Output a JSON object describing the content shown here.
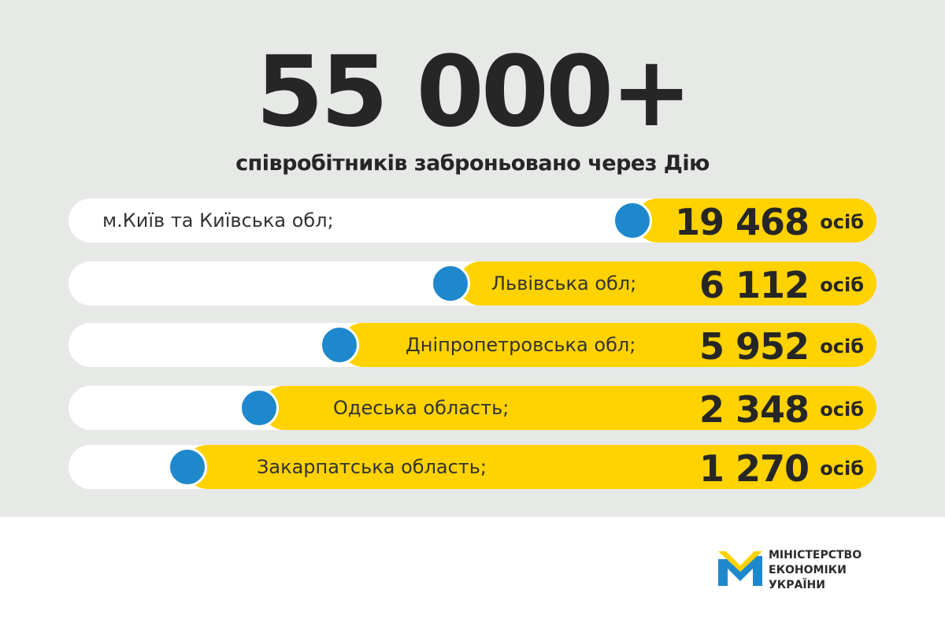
{
  "colors": {
    "background": "#e6e9e6",
    "bar_fill": "#ffd200",
    "bar_track": "#ffffff",
    "marker": "#1e88cc",
    "text": "#262626"
  },
  "header": {
    "total": "55 000+",
    "subtitle": "співробітників заброньовано через Дію"
  },
  "chart_data": {
    "type": "bar",
    "orientation": "horizontal",
    "categories": [
      "м.Київ та Київська обл;",
      "Львівська обл;",
      "Дніпропетровська обл;",
      "Одеська область;",
      "Закарпатська область;"
    ],
    "values": [
      19468,
      6112,
      5952,
      2348,
      1270
    ],
    "value_labels": [
      "19 468",
      "6 112",
      "5 952",
      "2 348",
      "1 270"
    ],
    "unit": "осіб"
  },
  "logo": {
    "icon": "ministry-m-logo",
    "line1": "МІНІСТЕРСТВО",
    "line2": "ЕКОНОМІКИ",
    "line3": "УКРАЇНИ"
  }
}
